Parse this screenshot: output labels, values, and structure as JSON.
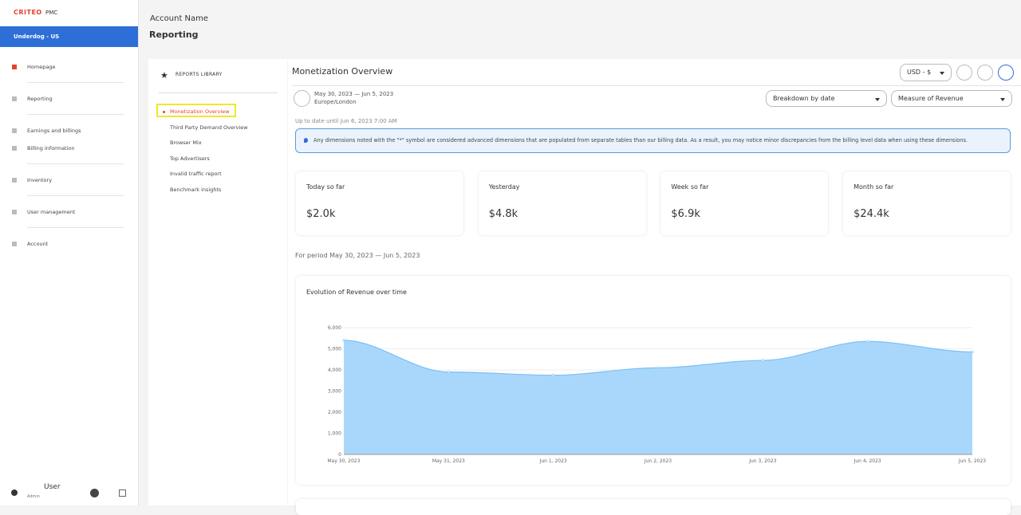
{
  "sidebar": {
    "brand": "CRITEO",
    "product": "PMC",
    "account": "Underdog - US",
    "nav": [
      "Homepage",
      "Reporting",
      "Earnings and billings",
      "Billing information",
      "Inventory",
      "User management",
      "Account"
    ],
    "user": {
      "name": "User",
      "role": "Admin"
    }
  },
  "header": {
    "account": "Account Name",
    "title": "Reporting"
  },
  "library": {
    "title": "REPORTS LIBRARY",
    "items": [
      "Monetization Overview",
      "Third Party Demand Overview",
      "Browser Mix",
      "Top Advertisers",
      "Invalid traffic report",
      "Benchmark insights"
    ]
  },
  "report": {
    "title": "Monetization Overview",
    "currency": "USD - $",
    "date_range": "May 30, 2023 — Jun 5, 2023",
    "timezone": "Europe/London",
    "breakdown": "Breakdown by date",
    "measure": "Measure of Revenue",
    "updated": "Up to date until Jun 6, 2023 7:00 AM",
    "notice": "Any dimensions noted with the \"*\" symbol are considered advanced dimensions that are populated from separate tables than our billing data. As a result, you may notice minor discrepancies from the billing level data when using these dimensions.",
    "kpis": [
      {
        "label": "Today so far",
        "value": "$2.0k"
      },
      {
        "label": "Yesterday",
        "value": "$4.8k"
      },
      {
        "label": "Week so far",
        "value": "$6.9k"
      },
      {
        "label": "Month so far",
        "value": "$24.4k"
      }
    ],
    "period": "For period May 30, 2023 — Jun 5, 2023"
  },
  "chart_data": {
    "type": "area",
    "title": "Evolution of Revenue over time",
    "categories": [
      "May 30, 2023",
      "May 31, 2023",
      "Jun 1, 2023",
      "Jun 2, 2023",
      "Jun 3, 2023",
      "Jun 4, 2023",
      "Jun 5, 2023"
    ],
    "values": [
      5400,
      3900,
      3750,
      4100,
      4450,
      5350,
      4850
    ],
    "color": "#7cc0f5",
    "fill": "#a9d7fb",
    "grid": true,
    "ylim": [
      0,
      6000
    ],
    "yticks": [
      0,
      {
        "value": 1000,
        "label": "1,000"
      },
      {
        "value": 2000,
        "label": "2,000"
      },
      {
        "value": 3000,
        "label": "3,000"
      },
      {
        "value": 4000,
        "label": "4,000"
      },
      {
        "value": 5000,
        "label": "5,000"
      },
      {
        "value": 6000,
        "label": "6,000"
      }
    ]
  }
}
